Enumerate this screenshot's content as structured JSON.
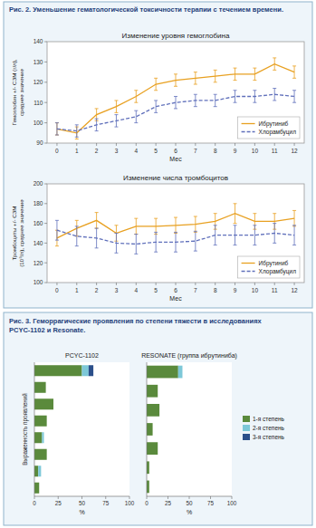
{
  "chart_data": [
    {
      "type": "line",
      "title": "Изменение уровня гемоглобина",
      "annotations": [
        "Рис. 2. Уменьшение гематологической токсичности терапии с течением времени."
      ],
      "xlabel": "Мес",
      "ylabel": "Гемоглобин +/- СЗМ (г/л),\nсреднее значение",
      "x": [
        0,
        1,
        2,
        3,
        4,
        5,
        6,
        7,
        8,
        9,
        10,
        11,
        12
      ],
      "xlim": [
        -0.5,
        12.5
      ],
      "xticks": [
        0,
        1,
        2,
        3,
        4,
        5,
        6,
        7,
        8,
        9,
        10,
        11,
        12
      ],
      "ylim": [
        90,
        140
      ],
      "yticks": [
        90,
        100,
        110,
        120,
        130,
        140
      ],
      "grid": false,
      "legend": "lower right",
      "series": [
        {
          "name": "Ибрутиниб",
          "color": "#E8A020",
          "line_style": "solid",
          "values": [
            97,
            95,
            104,
            108,
            113,
            119,
            121,
            122,
            123,
            124,
            124,
            129,
            125
          ],
          "errors": [
            3,
            3,
            3,
            3,
            3,
            3,
            3,
            3,
            3,
            3,
            3,
            3,
            3
          ]
        },
        {
          "name": "Хлорамбуцил",
          "color": "#6070BB",
          "line_style": "dashed",
          "values": [
            97,
            96,
            99,
            101,
            103,
            108,
            110,
            111,
            111,
            113,
            113,
            114,
            113
          ],
          "errors": [
            3,
            3,
            3,
            3,
            3,
            3,
            3,
            3,
            3,
            3,
            3,
            3,
            3
          ]
        }
      ]
    },
    {
      "type": "line",
      "title": "Изменение числа тромбоцитов",
      "xlabel": "Мес",
      "ylabel": "Тромбоциты +/- СЗМ\n(10⁹/л), среднее значение",
      "x": [
        0,
        1,
        2,
        3,
        4,
        5,
        6,
        7,
        8,
        9,
        10,
        11,
        12
      ],
      "xlim": [
        -0.5,
        12.5
      ],
      "xticks": [
        0,
        1,
        2,
        3,
        4,
        5,
        6,
        7,
        8,
        9,
        10,
        11,
        12
      ],
      "ylim": [
        100,
        200
      ],
      "yticks": [
        100,
        120,
        140,
        160,
        180,
        200
      ],
      "grid": false,
      "legend": "lower right",
      "series": [
        {
          "name": "Ибрутиниб",
          "color": "#E8A020",
          "line_style": "solid",
          "values": [
            145,
            155,
            163,
            150,
            157,
            157,
            158,
            159,
            162,
            170,
            162,
            162,
            165
          ],
          "errors": [
            8,
            8,
            8,
            8,
            8,
            8,
            8,
            8,
            8,
            10,
            8,
            8,
            8
          ]
        },
        {
          "name": "Хлорамбуцил",
          "color": "#6070BB",
          "line_style": "dashed",
          "values": [
            153,
            147,
            145,
            140,
            139,
            141,
            141,
            142,
            148,
            148,
            148,
            150,
            148
          ],
          "errors": [
            10,
            10,
            10,
            10,
            10,
            10,
            10,
            10,
            10,
            10,
            10,
            10,
            10
          ]
        }
      ]
    },
    {
      "type": "bar",
      "orientation": "horizontal",
      "stacked": true,
      "title": "PCYC-1102",
      "annotations": [
        "Рис. 3. Геморрагические проявления по степени тяжести в исследованиях\nPCYC-1102 и Resonate."
      ],
      "xlabel": "%",
      "ylabel": "Выраженность проявлений",
      "categories": [
        null,
        null,
        null,
        null,
        null,
        null,
        null,
        null
      ],
      "xlim": [
        0,
        100
      ],
      "xticks": [
        0,
        25,
        50,
        75,
        100
      ],
      "grid": false,
      "legend": "right",
      "series": [
        {
          "name": "1-я степень",
          "color": "#5A8A3C",
          "values": [
            50,
            12,
            20,
            13,
            8,
            13,
            4,
            5
          ]
        },
        {
          "name": "2-я степень",
          "color": "#7DC8D8",
          "values": [
            7,
            0,
            0,
            0,
            2,
            0,
            3,
            0
          ]
        },
        {
          "name": "3-я степень",
          "color": "#2B4F8A",
          "values": [
            5,
            0,
            0,
            0,
            0,
            0,
            0,
            0
          ]
        }
      ]
    },
    {
      "type": "bar",
      "orientation": "horizontal",
      "stacked": true,
      "title": "RESONATE (группа ибрутиниба)",
      "xlabel": "%",
      "categories": [
        null,
        null,
        null,
        null,
        null,
        null,
        null
      ],
      "xlim": [
        0,
        100
      ],
      "xticks": [
        0,
        25,
        50,
        75,
        100
      ],
      "grid": false,
      "series": [
        {
          "color": "#5A8A3C",
          "values": [
            37,
            13,
            15,
            7,
            13,
            3,
            3
          ]
        },
        {
          "color": "#7DC8D8",
          "values": [
            5,
            0,
            0,
            0,
            0,
            0,
            0
          ]
        },
        {
          "color": "#2B4F8A",
          "values": [
            0,
            0,
            0,
            0,
            0,
            0,
            0
          ]
        }
      ]
    }
  ]
}
